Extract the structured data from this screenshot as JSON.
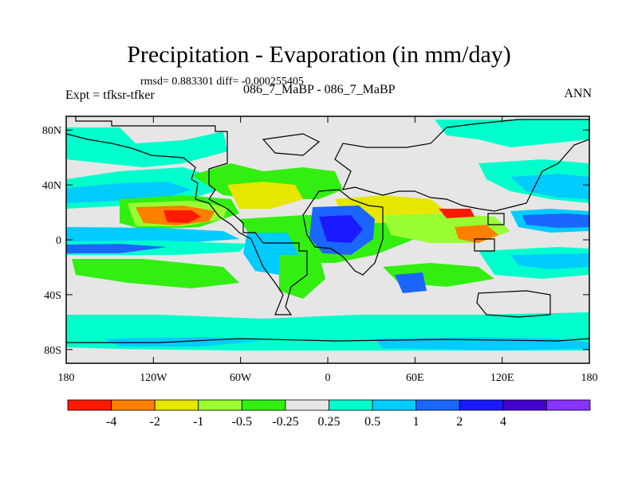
{
  "chart_data": {
    "type": "contour-map",
    "title": "Precipitation - Evaporation (in mm/day)",
    "stats_text": "rmsd= 0.883301 diff= -0.000255405",
    "experiment_label": "Expt = tfksr-tfker",
    "cases_label": "086_7_MaBP - 086_7_MaBP",
    "season": "ANN",
    "x_ticks": [
      "180",
      "120W",
      "60W",
      "0",
      "60E",
      "120E",
      "180"
    ],
    "x_tick_values": [
      -180,
      -120,
      -60,
      0,
      60,
      120,
      180
    ],
    "y_ticks": [
      "80N",
      "40N",
      "0",
      "40S",
      "80S"
    ],
    "y_tick_values": [
      80,
      40,
      0,
      -40,
      -80
    ],
    "xlim": [
      -180,
      180
    ],
    "ylim": [
      -90,
      90
    ],
    "colorbar": {
      "labels": [
        "-4",
        "-2",
        "-1",
        "-0.5",
        "-0.25",
        "0.25",
        "0.5",
        "1",
        "2",
        "4"
      ],
      "colors": [
        "#ff1a00",
        "#ff7f00",
        "#e6e600",
        "#99ff33",
        "#33ee11",
        "#e6e6e6",
        "#00ffcc",
        "#00ccff",
        "#1a66ff",
        "#1a1aff",
        "#4400cc",
        "#8833ff"
      ]
    },
    "fill_colors": {
      "neutral": "#e6e6e6",
      "wet_light": "#00ffcc",
      "wet_mid": "#00ccff",
      "wet_high": "#1a66ff",
      "wet_max": "#1a1aff",
      "dry_light": "#33ee11",
      "dry_mid": "#99ff33",
      "dry_high": "#e6e600",
      "dry_max": "#ff7f00",
      "dry_extreme": "#ff1a00"
    }
  }
}
